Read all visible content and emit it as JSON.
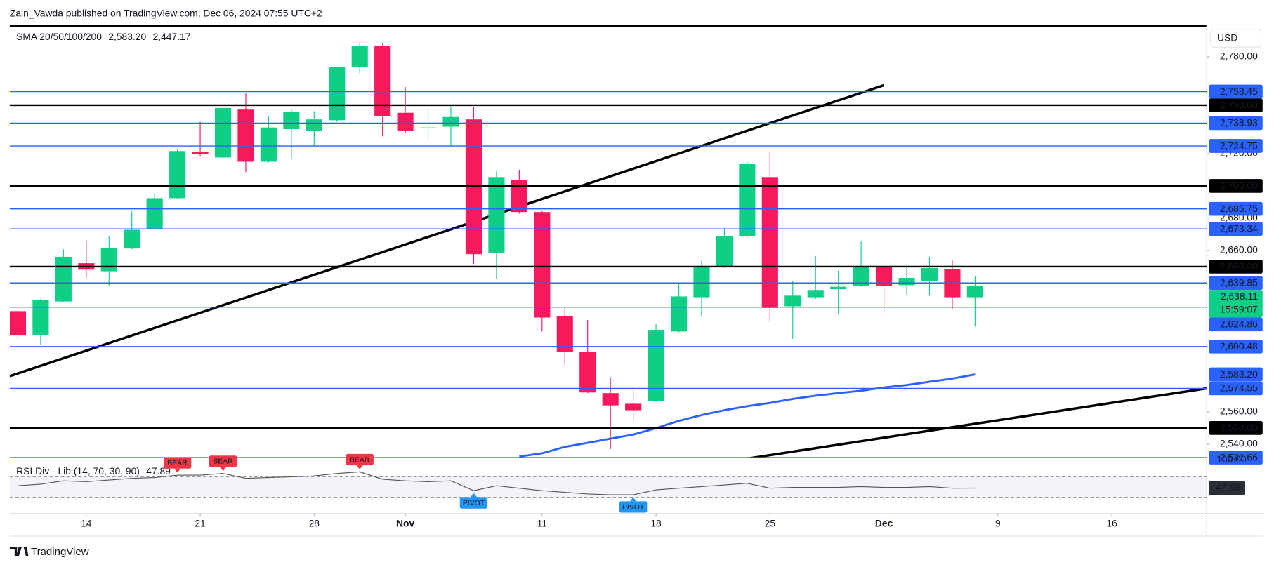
{
  "header": {
    "text": "Zain_Vawda published on TradingView.com, Dec 06, 2024 07:55 UTC+2"
  },
  "footer": {
    "brand": "TradingView"
  },
  "chart_data": {
    "type": "candlestick",
    "currency": "USD",
    "up_color": "#0fcf86",
    "down_color": "#f7195c",
    "categories": [
      "2024-10-09",
      "2024-10-10",
      "2024-10-11",
      "2024-10-14",
      "2024-10-15",
      "2024-10-16",
      "2024-10-17",
      "2024-10-18",
      "2024-10-21",
      "2024-10-22",
      "2024-10-23",
      "2024-10-24",
      "2024-10-25",
      "2024-10-28",
      "2024-10-29",
      "2024-10-30",
      "2024-10-31",
      "2024-11-01",
      "2024-11-04",
      "2024-11-05",
      "2024-11-06",
      "2024-11-07",
      "2024-11-08",
      "2024-11-11",
      "2024-11-12",
      "2024-11-13",
      "2024-11-14",
      "2024-11-15",
      "2024-11-18",
      "2024-11-19",
      "2024-11-20",
      "2024-11-21",
      "2024-11-22",
      "2024-11-25",
      "2024-11-26",
      "2024-11-27",
      "2024-11-28",
      "2024-11-29",
      "2024-12-02",
      "2024-12-03",
      "2024-12-04",
      "2024-12-05",
      "2024-12-06"
    ],
    "open": [
      2622.4,
      2607.8,
      2628.4,
      2652.1,
      2647.1,
      2661.2,
      2673.3,
      2692.4,
      2721.1,
      2717.6,
      2747.3,
      2715.0,
      2735.2,
      2734.2,
      2740.7,
      2773.5,
      2786.5,
      2745.3,
      2735.7,
      2736.7,
      2741.2,
      2658.7,
      2703.5,
      2683.8,
      2619.4,
      2597.2,
      2571.6,
      2565.0,
      2566.5,
      2609.8,
      2631.0,
      2649.6,
      2668.7,
      2705.5,
      2625.4,
      2631.0,
      2636.0,
      2638.0,
      2650.1,
      2638.5,
      2641.0,
      2648.6,
      2631.0
    ],
    "high": [
      2623.9,
      2630.0,
      2660.7,
      2666.2,
      2668.7,
      2684.3,
      2695.4,
      2722.6,
      2739.7,
      2748.8,
      2757.3,
      2743.2,
      2747.3,
      2746.3,
      2774.0,
      2789.1,
      2788.6,
      2761.4,
      2748.3,
      2749.3,
      2748.8,
      2709.0,
      2710.0,
      2684.8,
      2624.4,
      2616.9,
      2581.1,
      2575.1,
      2614.3,
      2639.0,
      2653.6,
      2673.8,
      2715.0,
      2721.1,
      2641.0,
      2656.6,
      2647.6,
      2665.7,
      2651.6,
      2650.1,
      2656.1,
      2654.1,
      2644.1
    ],
    "low": [
      2604.8,
      2601.3,
      2627.9,
      2643.0,
      2638.0,
      2660.7,
      2672.8,
      2691.9,
      2718.1,
      2716.1,
      2708.5,
      2714.5,
      2716.6,
      2724.6,
      2739.7,
      2769.9,
      2730.7,
      2732.7,
      2729.1,
      2724.6,
      2651.6,
      2642.5,
      2682.8,
      2609.8,
      2589.2,
      2571.6,
      2536.8,
      2554.4,
      2566.0,
      2609.3,
      2618.9,
      2649.1,
      2667.7,
      2615.4,
      2605.3,
      2630.0,
      2620.4,
      2637.5,
      2621.4,
      2632.5,
      2632.0,
      2623.4,
      2612.8
    ],
    "close": [
      2607.3,
      2629.5,
      2656.1,
      2648.1,
      2661.7,
      2672.8,
      2692.4,
      2721.6,
      2719.6,
      2748.3,
      2715.0,
      2736.2,
      2745.8,
      2741.2,
      2773.5,
      2786.5,
      2743.2,
      2734.2,
      2736.2,
      2742.7,
      2657.7,
      2705.5,
      2683.8,
      2618.4,
      2597.2,
      2572.0,
      2564.0,
      2561.0,
      2610.8,
      2631.5,
      2649.6,
      2668.7,
      2713.5,
      2624.4,
      2632.0,
      2635.5,
      2637.5,
      2650.1,
      2638.0,
      2643.0,
      2649.1,
      2631.0,
      2638.11
    ],
    "ylim": [
      2531.8,
      2799.1
    ],
    "yticks": [
      {
        "value": 2780,
        "label": "2,780.00"
      },
      {
        "value": 2720,
        "label": "2,720.00"
      },
      {
        "value": 2680,
        "label": "2,680.00"
      },
      {
        "value": 2660,
        "label": "2,660.00"
      },
      {
        "value": 2560,
        "label": "2,560.00"
      },
      {
        "value": 2540,
        "label": "2,540.00"
      }
    ],
    "xticks": [
      {
        "value": "2024-10-14",
        "label": "14"
      },
      {
        "value": "2024-10-21",
        "label": "21"
      },
      {
        "value": "2024-10-28",
        "label": "28"
      },
      {
        "value": "2024-11-01",
        "label": "Nov"
      },
      {
        "value": "2024-11-11",
        "label": "11"
      },
      {
        "value": "2024-11-18",
        "label": "18"
      },
      {
        "value": "2024-11-25",
        "label": "25"
      },
      {
        "value": "2024-12-02",
        "label": "Dec"
      },
      {
        "value": "2024-12-09",
        "label": "9"
      },
      {
        "value": "2024-12-16",
        "label": "16"
      }
    ],
    "sma": {
      "name": "SMA 20/50/100/200",
      "series": [
        {
          "color": "#2962ff",
          "last": {
            "value": 2583.2,
            "label": "2,583.20"
          },
          "values": [
            null,
            null,
            null,
            null,
            null,
            null,
            null,
            null,
            null,
            null,
            null,
            null,
            null,
            null,
            null,
            null,
            null,
            null,
            null,
            null,
            null,
            null,
            2532.3,
            2534.3,
            2538.3,
            2540.8,
            2543.4,
            2545.9,
            2549.9,
            2554.4,
            2558.0,
            2561.0,
            2563.5,
            2565.5,
            2568.0,
            2570.0,
            2571.6,
            2573.1,
            2575.1,
            2576.6,
            2578.6,
            2580.6,
            2583.2
          ]
        },
        {
          "color": "#f5a000",
          "last": {
            "value": 2447.17,
            "label": "2,447.17"
          }
        }
      ]
    },
    "levels": [
      {
        "value": 2758.45,
        "label": "2,758.45",
        "color": "#2962ff"
      },
      {
        "value": 2750,
        "label": "2,750.00",
        "color": "#000000"
      },
      {
        "value": 2738.93,
        "label": "2,738.93",
        "color": "#2962ff"
      },
      {
        "value": 2724.75,
        "label": "2,724.75",
        "color": "#2962ff"
      },
      {
        "value": 2700,
        "label": "2,700.00",
        "color": "#000000"
      },
      {
        "value": 2685.75,
        "label": "2,685.75",
        "color": "#2962ff"
      },
      {
        "value": 2673.34,
        "label": "2,673.34",
        "color": "#2962ff"
      },
      {
        "value": 2650,
        "label": "2,650.00",
        "color": "#000000"
      },
      {
        "value": 2639.85,
        "label": "2,639.85",
        "color": "#2962ff"
      },
      {
        "value": 2624.86,
        "label": "2,624.86",
        "color": "#2962ff"
      },
      {
        "value": 2600.48,
        "label": "2,600.48",
        "color": "#2962ff"
      },
      {
        "value": 2574.55,
        "label": "2,574.55",
        "color": "#2962ff"
      },
      {
        "value": 2550,
        "label": "2,550.00",
        "color": "#000000"
      },
      {
        "value": 2531.66,
        "label": "2,531.66",
        "color": "#2962ff"
      }
    ],
    "last_price": {
      "value": 2638.11,
      "label": "2,638.11",
      "countdown": "15:59:07"
    },
    "trendlines": [
      {
        "points": [
          {
            "x": "2024-10-09",
            "y": 2583.8
          },
          {
            "x": "2024-12-02",
            "y": 2762.4
          }
        ],
        "extend": "left"
      },
      {
        "points": [
          {
            "x": "2024-11-22",
            "y": 2531.0
          },
          {
            "x": "2024-12-06",
            "y": 2552.6
          }
        ],
        "extend": "both"
      }
    ],
    "rsi": {
      "title": "RSI Div - Lib (14, 70, 30, 90)",
      "value": {
        "value": 47.89,
        "label": "47.89"
      },
      "ylim": [
        0,
        100
      ],
      "yticks": [
        {
          "value": 100,
          "label": "100.00"
        }
      ],
      "bands": [
        30,
        70
      ],
      "color": "#555555",
      "values": [
        52.4,
        55.6,
        62,
        60.4,
        63.6,
        66.8,
        68.4,
        73.2,
        73.2,
        76.4,
        66.8,
        68.4,
        70,
        71.6,
        76.4,
        79.6,
        65.2,
        62,
        60.4,
        62,
        42.8,
        52.4,
        47.6,
        42.8,
        39.6,
        36.4,
        34.8,
        34.8,
        44.4,
        47.6,
        50.8,
        54,
        57.2,
        47.6,
        49.2,
        49.2,
        49.2,
        50.8,
        49.2,
        49.2,
        50.8,
        47.6,
        47.89
      ],
      "signals": [
        {
          "x": "2024-10-18",
          "label": "BEAR"
        },
        {
          "x": "2024-10-22",
          "label": "BEAR"
        },
        {
          "x": "2024-10-30",
          "label": "BEAR"
        },
        {
          "x": "2024-11-06",
          "label": "PIVOT"
        },
        {
          "x": "2024-11-15",
          "label": "PIVOT"
        }
      ]
    }
  }
}
